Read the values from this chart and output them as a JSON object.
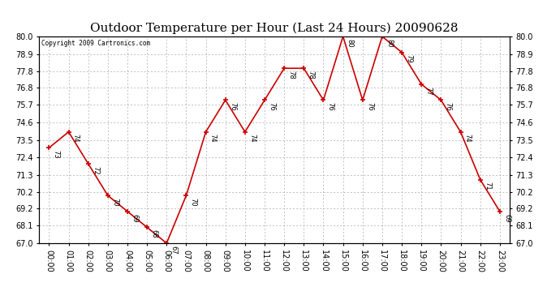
{
  "title": "Outdoor Temperature per Hour (Last 24 Hours) 20090628",
  "copyright": "Copyright 2009 Cartronics.com",
  "hours": [
    "00:00",
    "01:00",
    "02:00",
    "03:00",
    "04:00",
    "05:00",
    "06:00",
    "07:00",
    "08:00",
    "09:00",
    "10:00",
    "11:00",
    "12:00",
    "13:00",
    "14:00",
    "15:00",
    "16:00",
    "17:00",
    "18:00",
    "19:00",
    "20:00",
    "21:00",
    "22:00",
    "23:00"
  ],
  "temps": [
    73,
    74,
    72,
    70,
    69,
    68,
    67,
    70,
    74,
    76,
    74,
    76,
    78,
    78,
    76,
    80,
    76,
    80,
    79,
    77,
    76,
    74,
    71,
    69
  ],
  "line_color": "#cc0000",
  "marker": "+",
  "bg_color": "#ffffff",
  "grid_color": "#aaaaaa",
  "ylim_min": 67.0,
  "ylim_max": 80.0,
  "yticks": [
    67.0,
    68.1,
    69.2,
    70.2,
    71.3,
    72.4,
    73.5,
    74.6,
    75.7,
    76.8,
    77.8,
    78.9,
    80.0
  ],
  "title_fontsize": 11,
  "tick_fontsize": 7,
  "annot_fontsize": 6
}
